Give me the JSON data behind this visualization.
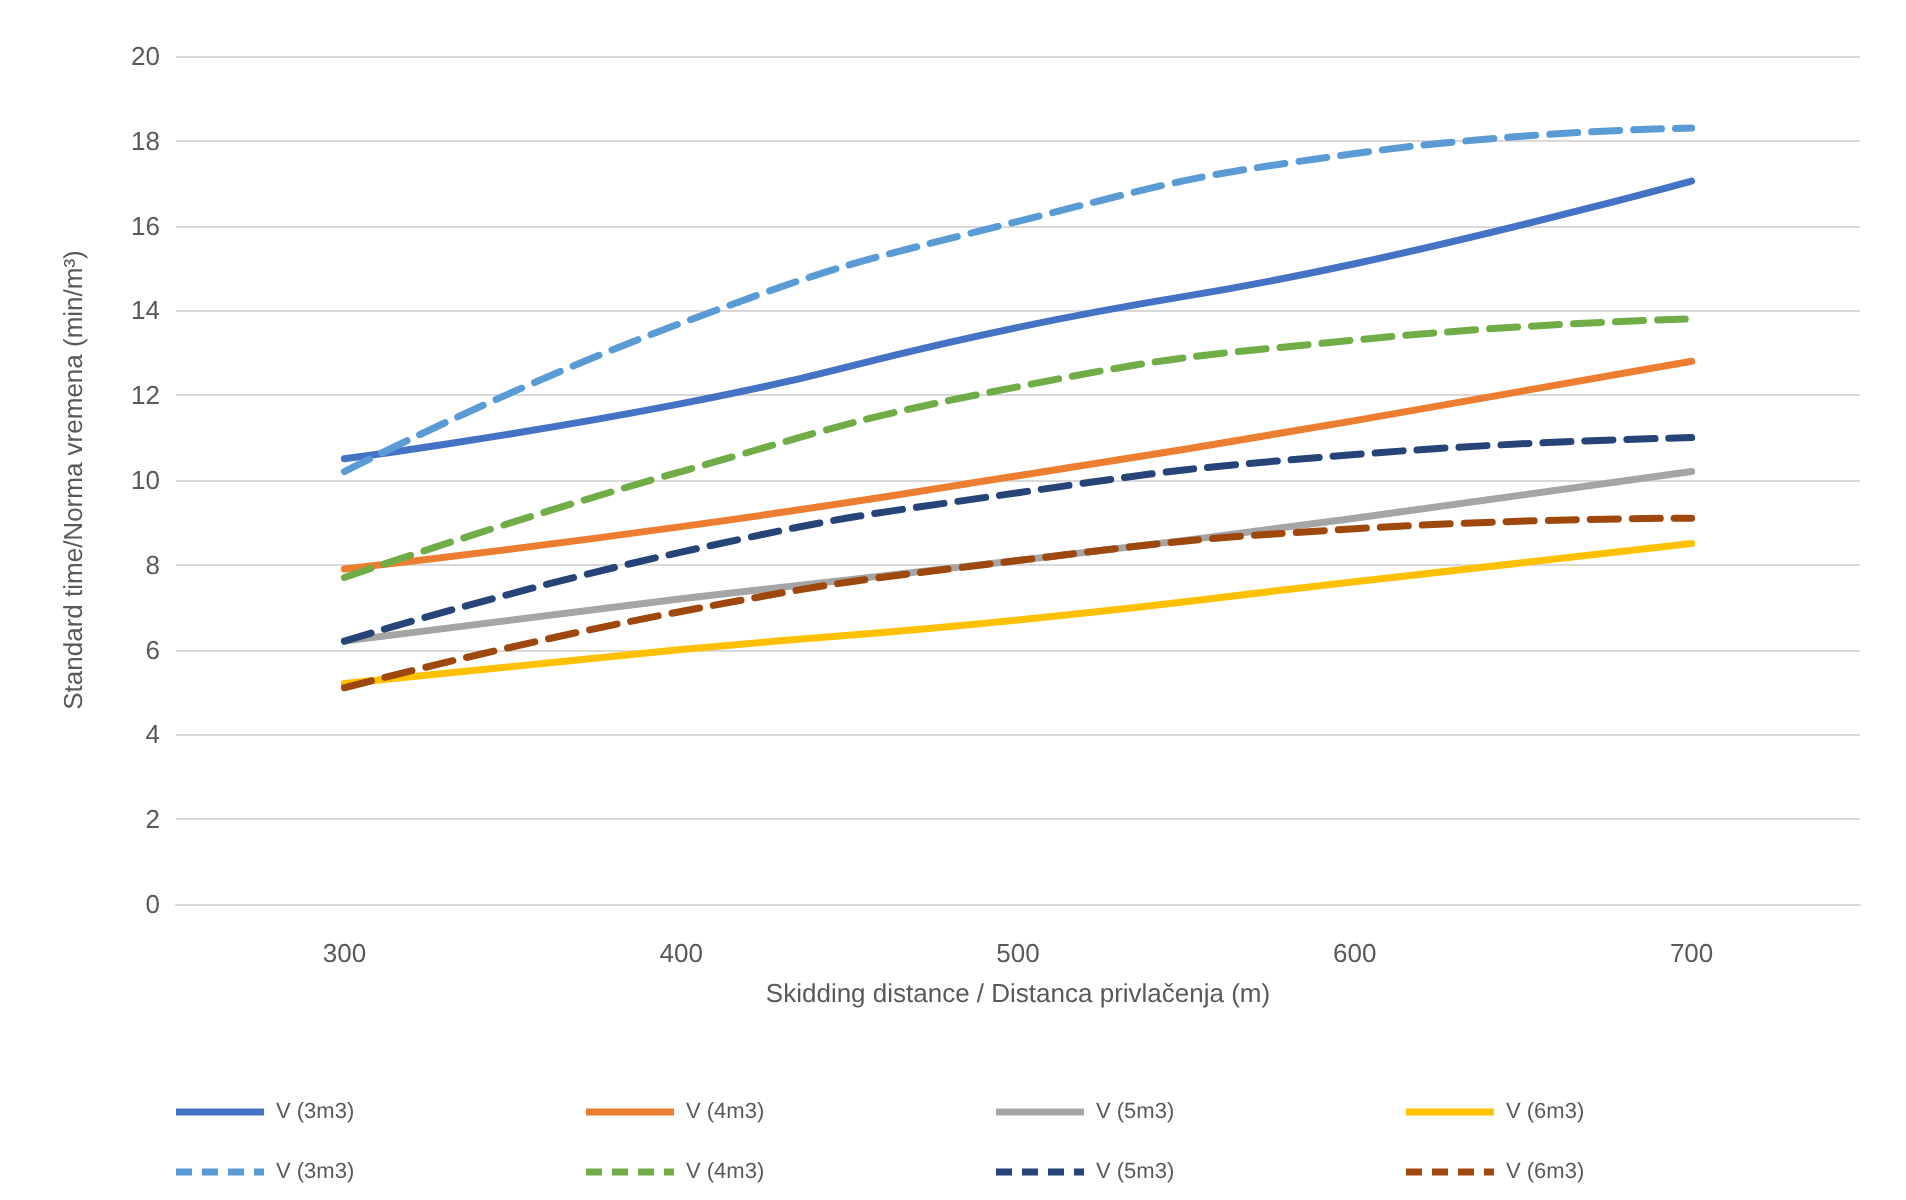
{
  "chart_data": {
    "type": "line",
    "xlabel": "Skidding distance / Distanca privlačenja (m)",
    "ylabel": "Standard time/Norma vremena (min/m³)",
    "categories": [
      "300",
      "400",
      "500",
      "600",
      "700"
    ],
    "ylim": [
      0,
      20
    ],
    "yticks": [
      0,
      2,
      4,
      6,
      8,
      10,
      12,
      14,
      16,
      18,
      20
    ],
    "grid": "y",
    "legend": "bottom",
    "marker": "none",
    "series": [
      {
        "name": "V (3m3)",
        "color": "#4472c4",
        "line_style": "solid",
        "values": [
          10.5,
          11.8,
          13.6,
          15.1,
          17.05
        ]
      },
      {
        "name": "V (4m3)",
        "color": "#ed7d31",
        "line_style": "solid",
        "values": [
          7.9,
          8.9,
          10.1,
          11.4,
          12.8
        ]
      },
      {
        "name": "V (5m3)",
        "color": "#a5a5a5",
        "line_style": "solid",
        "values": [
          6.2,
          7.2,
          8.1,
          9.1,
          10.2
        ]
      },
      {
        "name": "V (6m3)",
        "color": "#ffc000",
        "line_style": "solid",
        "values": [
          5.2,
          6.0,
          6.7,
          7.6,
          8.5
        ]
      },
      {
        "name": "V (3m3)",
        "color": "#5b9bd5",
        "line_style": "dashed",
        "values": [
          10.2,
          13.7,
          16.1,
          17.7,
          18.3
        ]
      },
      {
        "name": "V (4m3)",
        "color": "#70ad47",
        "line_style": "dashed",
        "values": [
          7.7,
          10.2,
          12.2,
          13.3,
          13.8
        ]
      },
      {
        "name": "V (5m3)",
        "color": "#264478",
        "line_style": "dashed",
        "values": [
          6.2,
          8.3,
          9.7,
          10.6,
          11.0
        ]
      },
      {
        "name": "V (6m3)",
        "color": "#9e480e",
        "line_style": "dashed",
        "values": [
          5.1,
          6.9,
          8.1,
          8.85,
          9.1
        ]
      }
    ]
  }
}
